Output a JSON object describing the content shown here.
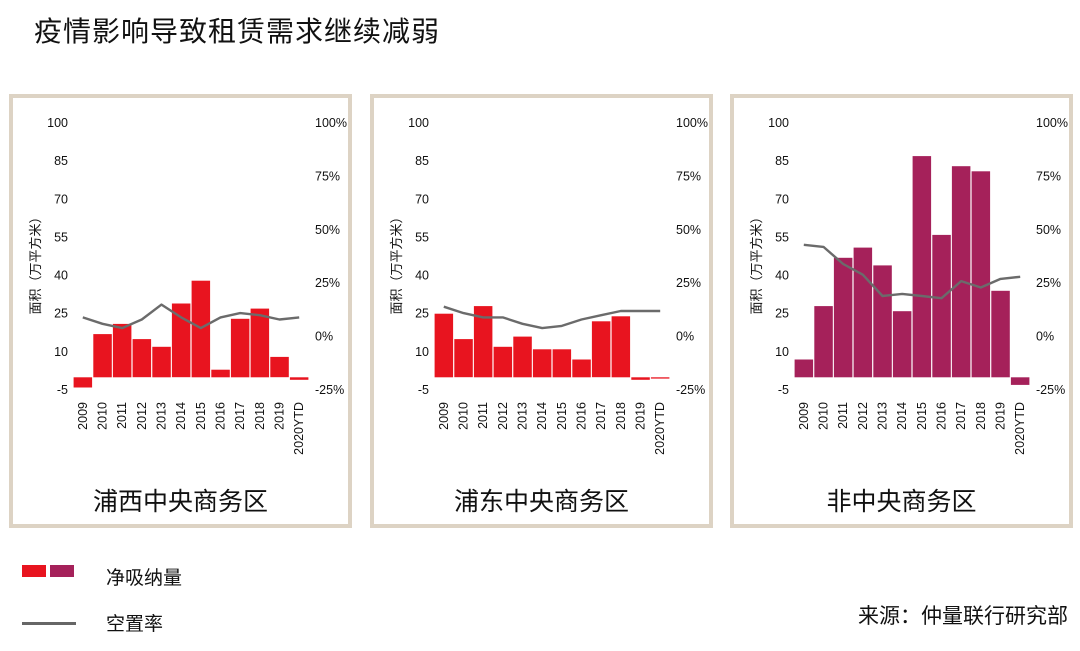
{
  "title": "疫情影响导致租赁需求继续减弱",
  "legend": {
    "bar_label": "净吸纳量",
    "line_label": "空置率",
    "bar_colors": [
      "#e8141f",
      "#a5215a"
    ],
    "line_color": "#6b6b6b"
  },
  "source": "来源：仲量联行研究部",
  "shared_axes": {
    "ylabel": "面积（万平方米）",
    "left_ticks": [
      -5,
      10,
      25,
      40,
      55,
      70,
      85,
      100
    ],
    "right_ticks": [
      "-25%",
      "0%",
      "25%",
      "50%",
      "75%",
      "100%"
    ]
  },
  "chart_data": [
    {
      "type": "bar",
      "title": "浦西中央商务区",
      "bar_color": "#e8141f",
      "categories": [
        "2009",
        "2010",
        "2011",
        "2012",
        "2013",
        "2014",
        "2015",
        "2016",
        "2017",
        "2018",
        "2019",
        "2020YTD"
      ],
      "ylim": [
        -5,
        100
      ],
      "y2lim": [
        -25,
        100
      ],
      "ylabel": "面积（万平方米）",
      "series": [
        {
          "type": "bar",
          "values": [
            -4,
            17,
            21,
            15,
            12,
            29,
            38,
            3,
            23,
            27,
            8,
            -1
          ]
        },
        {
          "type": "line",
          "axis": "right",
          "values": [
            9,
            6,
            4,
            8,
            15,
            9,
            4,
            9,
            11,
            10,
            8,
            9
          ]
        }
      ]
    },
    {
      "type": "bar",
      "title": "浦东中央商务区",
      "bar_color": "#e8141f",
      "categories": [
        "2009",
        "2010",
        "2011",
        "2012",
        "2013",
        "2014",
        "2015",
        "2016",
        "2017",
        "2018",
        "2019",
        "2020YTD"
      ],
      "ylim": [
        -5,
        100
      ],
      "y2lim": [
        -25,
        100
      ],
      "ylabel": "面积（万平方米）",
      "series": [
        {
          "type": "bar",
          "values": [
            25,
            15,
            28,
            12,
            16,
            11,
            11,
            7,
            22,
            24,
            -1,
            -0.5
          ]
        },
        {
          "type": "line",
          "axis": "right",
          "values": [
            14,
            11,
            9,
            9,
            6,
            4,
            5,
            8,
            10,
            12,
            12,
            12
          ]
        }
      ]
    },
    {
      "type": "bar",
      "title": "非中央商务区",
      "bar_color": "#a5215a",
      "categories": [
        "2009",
        "2010",
        "2011",
        "2012",
        "2013",
        "2014",
        "2015",
        "2016",
        "2017",
        "2018",
        "2019",
        "2020YTD"
      ],
      "ylim": [
        -5,
        100
      ],
      "y2lim": [
        -25,
        100
      ],
      "ylabel": "面积（万平方米）",
      "series": [
        {
          "type": "bar",
          "values": [
            7,
            28,
            47,
            51,
            44,
            26,
            87,
            56,
            83,
            81,
            34,
            -3
          ]
        },
        {
          "type": "line",
          "axis": "right",
          "values": [
            43,
            42,
            34,
            29,
            19,
            20,
            19,
            18,
            26,
            23,
            27,
            28
          ]
        }
      ]
    }
  ]
}
